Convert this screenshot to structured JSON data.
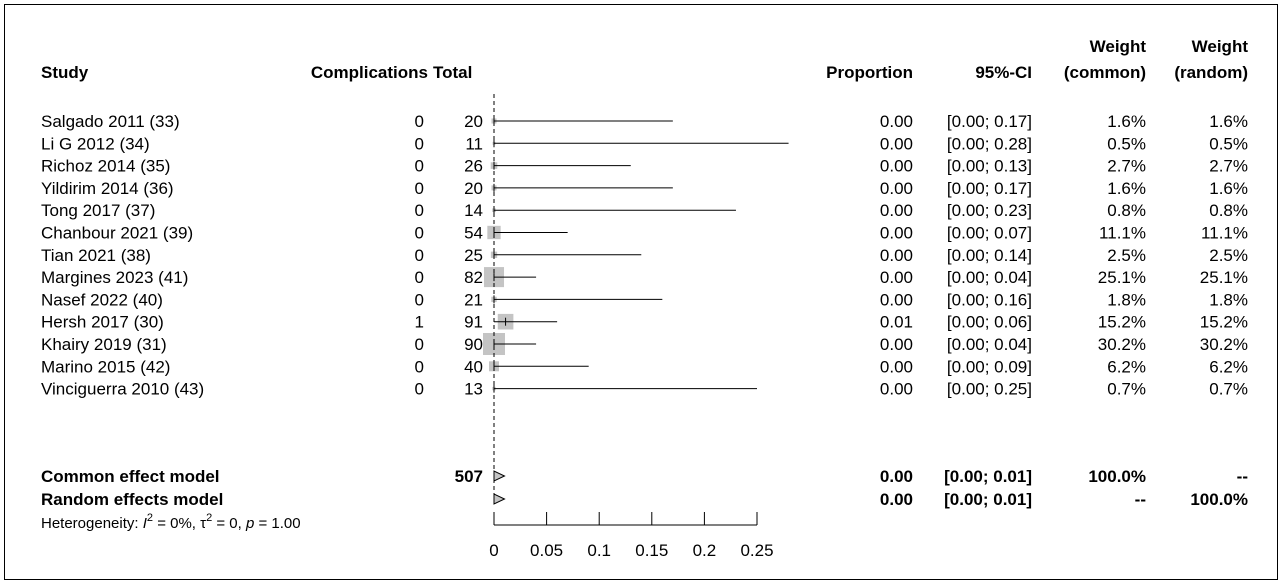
{
  "headers": {
    "study": "Study",
    "events": "Complications",
    "total": "Total",
    "proportion": "Proportion",
    "ci": "95%-CI",
    "weight_common_1": "Weight",
    "weight_common_2": "(common)",
    "weight_random_1": "Weight",
    "weight_random_2": "(random)"
  },
  "chart_data": {
    "type": "forest",
    "xlim": [
      0,
      0.25
    ],
    "ticks": [
      0,
      0.05,
      0.1,
      0.15,
      0.2,
      0.25
    ],
    "tick_labels": [
      "0",
      "0.05",
      "0.1",
      "0.15",
      "0.2",
      "0.25"
    ],
    "studies": [
      {
        "study": "Salgado 2011 (33)",
        "events": "0",
        "total": "20",
        "prop_text": "0.00",
        "ci_text": "[0.00; 0.17]",
        "w_common": "1.6%",
        "w_random": "1.6%",
        "est": 0.0,
        "lo": 0.0,
        "hi": 0.17,
        "weight": 1.6
      },
      {
        "study": "Li G 2012 (34)",
        "events": "0",
        "total": "11",
        "prop_text": "0.00",
        "ci_text": "[0.00; 0.28]",
        "w_common": "0.5%",
        "w_random": "0.5%",
        "est": 0.0,
        "lo": 0.0,
        "hi": 0.28,
        "weight": 0.5
      },
      {
        "study": "Richoz 2014 (35)",
        "events": "0",
        "total": "26",
        "prop_text": "0.00",
        "ci_text": "[0.00; 0.13]",
        "w_common": "2.7%",
        "w_random": "2.7%",
        "est": 0.0,
        "lo": 0.0,
        "hi": 0.13,
        "weight": 2.7
      },
      {
        "study": "Yildirim 2014 (36)",
        "events": "0",
        "total": "20",
        "prop_text": "0.00",
        "ci_text": "[0.00; 0.17]",
        "w_common": "1.6%",
        "w_random": "1.6%",
        "est": 0.0,
        "lo": 0.0,
        "hi": 0.17,
        "weight": 1.6
      },
      {
        "study": "Tong 2017 (37)",
        "events": "0",
        "total": "14",
        "prop_text": "0.00",
        "ci_text": "[0.00; 0.23]",
        "w_common": "0.8%",
        "w_random": "0.8%",
        "est": 0.0,
        "lo": 0.0,
        "hi": 0.23,
        "weight": 0.8
      },
      {
        "study": "Chanbour 2021 (39)",
        "events": "0",
        "total": "54",
        "prop_text": "0.00",
        "ci_text": "[0.00; 0.07]",
        "w_common": "11.1%",
        "w_random": "11.1%",
        "est": 0.0,
        "lo": 0.0,
        "hi": 0.07,
        "weight": 11.1
      },
      {
        "study": "Tian 2021 (38)",
        "events": "0",
        "total": "25",
        "prop_text": "0.00",
        "ci_text": "[0.00; 0.14]",
        "w_common": "2.5%",
        "w_random": "2.5%",
        "est": 0.0,
        "lo": 0.0,
        "hi": 0.14,
        "weight": 2.5
      },
      {
        "study": "Margines 2023 (41)",
        "events": "0",
        "total": "82",
        "prop_text": "0.00",
        "ci_text": "[0.00; 0.04]",
        "w_common": "25.1%",
        "w_random": "25.1%",
        "est": 0.0,
        "lo": 0.0,
        "hi": 0.04,
        "weight": 25.1
      },
      {
        "study": "Nasef 2022 (40)",
        "events": "0",
        "total": "21",
        "prop_text": "0.00",
        "ci_text": "[0.00; 0.16]",
        "w_common": "1.8%",
        "w_random": "1.8%",
        "est": 0.0,
        "lo": 0.0,
        "hi": 0.16,
        "weight": 1.8
      },
      {
        "study": "Hersh 2017 (30)",
        "events": "1",
        "total": "91",
        "prop_text": "0.01",
        "ci_text": "[0.00; 0.06]",
        "w_common": "15.2%",
        "w_random": "15.2%",
        "est": 0.011,
        "lo": 0.0,
        "hi": 0.06,
        "weight": 15.2
      },
      {
        "study": "Khairy 2019 (31)",
        "events": "0",
        "total": "90",
        "prop_text": "0.00",
        "ci_text": "[0.00; 0.04]",
        "w_common": "30.2%",
        "w_random": "30.2%",
        "est": 0.0,
        "lo": 0.0,
        "hi": 0.04,
        "weight": 30.2
      },
      {
        "study": "Marino 2015 (42)",
        "events": "0",
        "total": "40",
        "prop_text": "0.00",
        "ci_text": "[0.00; 0.09]",
        "w_common": "6.2%",
        "w_random": "6.2%",
        "est": 0.0,
        "lo": 0.0,
        "hi": 0.09,
        "weight": 6.2
      },
      {
        "study": "Vinciguerra 2010 (43)",
        "events": "0",
        "total": "13",
        "prop_text": "0.00",
        "ci_text": "[0.00; 0.25]",
        "w_common": "0.7%",
        "w_random": "0.7%",
        "est": 0.0,
        "lo": 0.0,
        "hi": 0.25,
        "weight": 0.7
      }
    ],
    "summary": [
      {
        "label": "Common effect model",
        "total": "507",
        "prop_text": "0.00",
        "ci_text": "[0.00; 0.01]",
        "w_common": "100.0%",
        "w_random": "--",
        "est": 0.0,
        "lo": 0.0,
        "hi": 0.01
      },
      {
        "label": "Random effects model",
        "total": "",
        "prop_text": "0.00",
        "ci_text": "[0.00; 0.01]",
        "w_common": "--",
        "w_random": "100.0%",
        "est": 0.0,
        "lo": 0.0,
        "hi": 0.01
      }
    ],
    "heterogeneity": {
      "prefix": "Heterogeneity: ",
      "i2_symbol": "I",
      "i2_sup": "2",
      "i2_value": " = 0%, ",
      "tau2_symbol": "τ",
      "tau2_sup": "2",
      "tau2_value": " = 0, ",
      "p_symbol": "p",
      "p_value": " = 1.00"
    }
  }
}
